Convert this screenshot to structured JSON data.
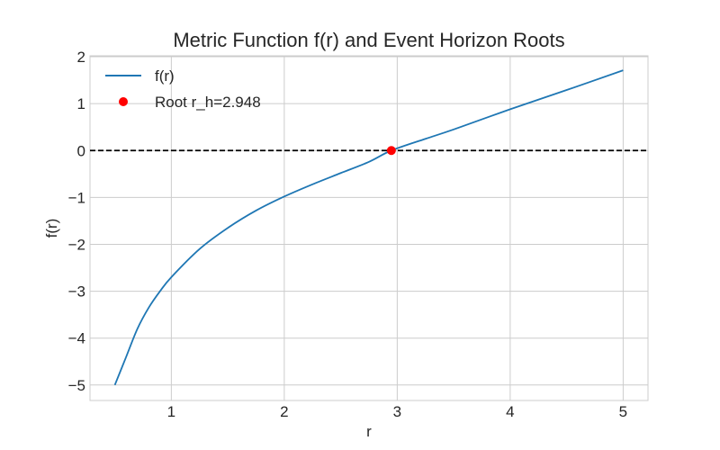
{
  "chart_data": {
    "type": "line",
    "title": "Metric Function f(r) and Event Horizon Roots",
    "xlabel": "r",
    "ylabel": "f(r)",
    "xlim": [
      0.28,
      5.22
    ],
    "ylim": [
      -5.33,
      2.02
    ],
    "xticks": [
      1,
      2,
      3,
      4,
      5
    ],
    "yticks": [
      -5,
      -4,
      -3,
      -2,
      -1,
      0,
      1,
      2
    ],
    "xtick_labels": [
      "1",
      "2",
      "3",
      "4",
      "5"
    ],
    "ytick_labels": [
      "−5",
      "−4",
      "−3",
      "−2",
      "−1",
      "0",
      "1",
      "2"
    ],
    "grid": true,
    "legend_position": "top-left",
    "series": [
      {
        "name": "f(r)",
        "color": "#1f77b4",
        "x": [
          0.5,
          0.6,
          0.7,
          0.8,
          0.9,
          1.0,
          1.25,
          1.5,
          1.75,
          2.0,
          2.25,
          2.5,
          2.75,
          2.948,
          3.25,
          3.5,
          4.0,
          4.5,
          5.0
        ],
        "y": [
          -5.0,
          -4.4,
          -3.8,
          -3.35,
          -3.0,
          -2.7,
          -2.1,
          -1.65,
          -1.28,
          -0.98,
          -0.72,
          -0.48,
          -0.24,
          0.0,
          0.25,
          0.45,
          0.88,
          1.29,
          1.71
        ]
      }
    ],
    "reference_line": {
      "y": 0,
      "color": "#000000",
      "style": "dashed"
    },
    "root_marker": {
      "name": "Root r_h=2.948",
      "x": 2.948,
      "y": 0,
      "color": "#ff0000"
    }
  }
}
